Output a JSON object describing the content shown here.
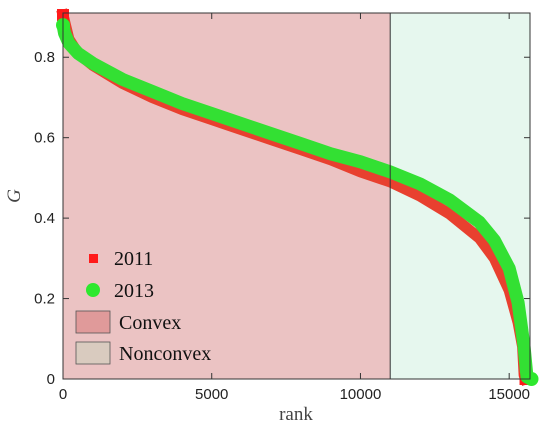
{
  "chart_data": {
    "type": "scatter",
    "xlabel": "rank",
    "ylabel": "G",
    "xlim": [
      0,
      15700
    ],
    "ylim": [
      0,
      0.91
    ],
    "x_ticks": [
      "0",
      "5000",
      "10000",
      "15000"
    ],
    "y_ticks": [
      "0",
      "0.2",
      "0.4",
      "0.6",
      "0.8"
    ],
    "regions": [
      {
        "name": "Convex",
        "x_range": [
          0,
          11000
        ],
        "color": "#ebc3c3"
      },
      {
        "name": "Nonconvex",
        "x_range": [
          11000,
          15700
        ],
        "color": "#e6f7ee"
      }
    ],
    "region_divider_x": 11000,
    "legend_placement": "bottom-left",
    "legend": [
      {
        "label": "2011",
        "marker": "square",
        "color": "#ff1a1a"
      },
      {
        "label": "2013",
        "marker": "circle",
        "color": "#2ee82e"
      },
      {
        "label": "Convex",
        "marker": "patch",
        "color": "#e09a9a"
      },
      {
        "label": "Nonconvex",
        "marker": "patch",
        "color": "#d9cbbf"
      }
    ],
    "series": [
      {
        "name": "2011",
        "color": "#e8402f",
        "marker": "square",
        "points": [
          [
            0,
            0.905
          ],
          [
            50,
            0.89
          ],
          [
            200,
            0.845
          ],
          [
            500,
            0.81
          ],
          [
            1000,
            0.78
          ],
          [
            2000,
            0.735
          ],
          [
            3000,
            0.7
          ],
          [
            4000,
            0.67
          ],
          [
            5000,
            0.645
          ],
          [
            6000,
            0.62
          ],
          [
            7000,
            0.595
          ],
          [
            8000,
            0.57
          ],
          [
            9000,
            0.545
          ],
          [
            10000,
            0.515
          ],
          [
            11000,
            0.49
          ],
          [
            12000,
            0.455
          ],
          [
            13000,
            0.41
          ],
          [
            14000,
            0.35
          ],
          [
            14500,
            0.3
          ],
          [
            15000,
            0.22
          ],
          [
            15300,
            0.14
          ],
          [
            15450,
            0.08
          ],
          [
            15500,
            0.01
          ],
          [
            15550,
            0.0
          ]
        ]
      },
      {
        "name": "2013",
        "color": "#33e033",
        "marker": "circle",
        "points": [
          [
            0,
            0.88
          ],
          [
            50,
            0.86
          ],
          [
            200,
            0.835
          ],
          [
            500,
            0.81
          ],
          [
            1000,
            0.785
          ],
          [
            2000,
            0.745
          ],
          [
            3000,
            0.715
          ],
          [
            4000,
            0.685
          ],
          [
            5000,
            0.66
          ],
          [
            6000,
            0.635
          ],
          [
            7000,
            0.61
          ],
          [
            8000,
            0.585
          ],
          [
            9000,
            0.56
          ],
          [
            10000,
            0.54
          ],
          [
            11000,
            0.515
          ],
          [
            12000,
            0.485
          ],
          [
            13000,
            0.445
          ],
          [
            14000,
            0.39
          ],
          [
            14500,
            0.345
          ],
          [
            15000,
            0.275
          ],
          [
            15300,
            0.19
          ],
          [
            15500,
            0.08
          ],
          [
            15600,
            0.005
          ],
          [
            15750,
            0.0
          ]
        ]
      }
    ]
  }
}
